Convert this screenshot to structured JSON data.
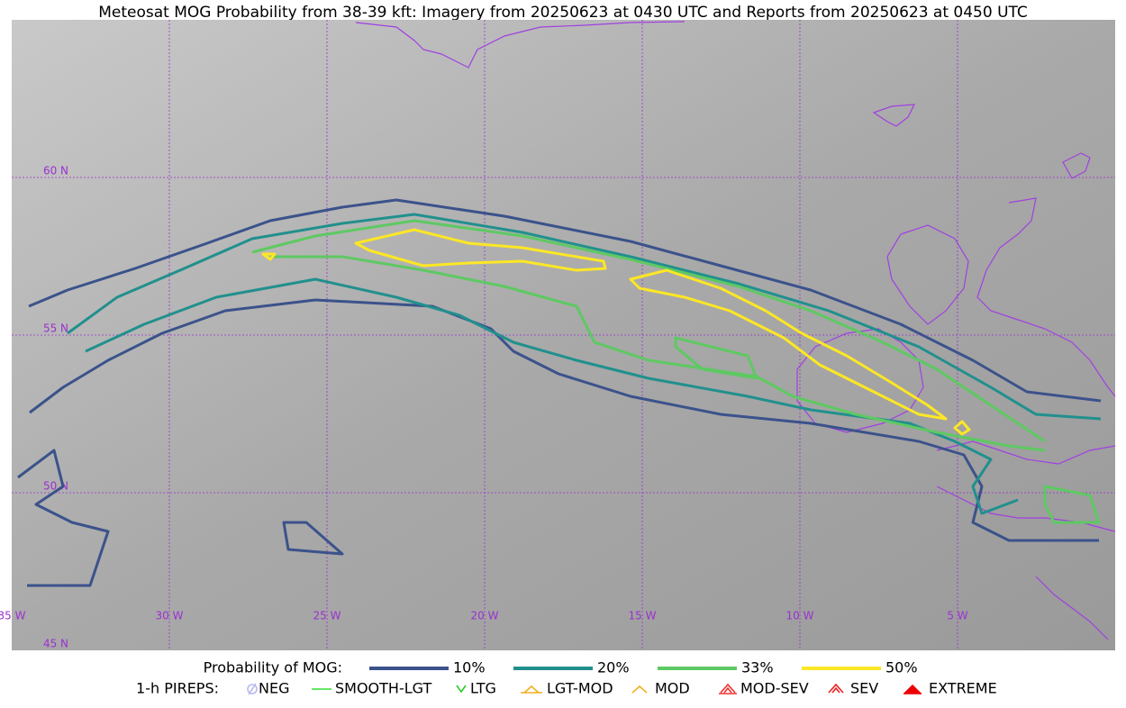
{
  "title": "Meteosat MOG Probability from 38-39 kft: Imagery from 20250623 at 0430 UTC and Reports from 20250623 at 0450 UTC",
  "map": {
    "lat_labels": [
      "60 N",
      "55 N",
      "50 N",
      "45 N"
    ],
    "lon_labels": [
      "35 W",
      "30 W",
      "25 W",
      "20 W",
      "15 W",
      "10 W",
      "5 W"
    ]
  },
  "legend": {
    "probability": {
      "label": "Probability of MOG:",
      "items": [
        {
          "label": "10%",
          "color": "#3b528b"
        },
        {
          "label": "20%",
          "color": "#21908d"
        },
        {
          "label": "33%",
          "color": "#5ec962"
        },
        {
          "label": "50%",
          "color": "#fde725"
        }
      ]
    },
    "pireps": {
      "label": "1-h PIREPS:",
      "items": [
        {
          "label": "NEG",
          "color": "#b8b8f0"
        },
        {
          "label": "SMOOTH-LGT",
          "color": "#33dd33"
        },
        {
          "label": "LTG",
          "color": "#22cc22"
        },
        {
          "label": "LGT-MOD",
          "color": "#f0b020"
        },
        {
          "label": "MOD",
          "color": "#f0b020"
        },
        {
          "label": "MOD-SEV",
          "color": "#ee3333"
        },
        {
          "label": "SEV",
          "color": "#ee2222"
        },
        {
          "label": "EXTREME",
          "color": "#ee0000"
        }
      ]
    }
  }
}
